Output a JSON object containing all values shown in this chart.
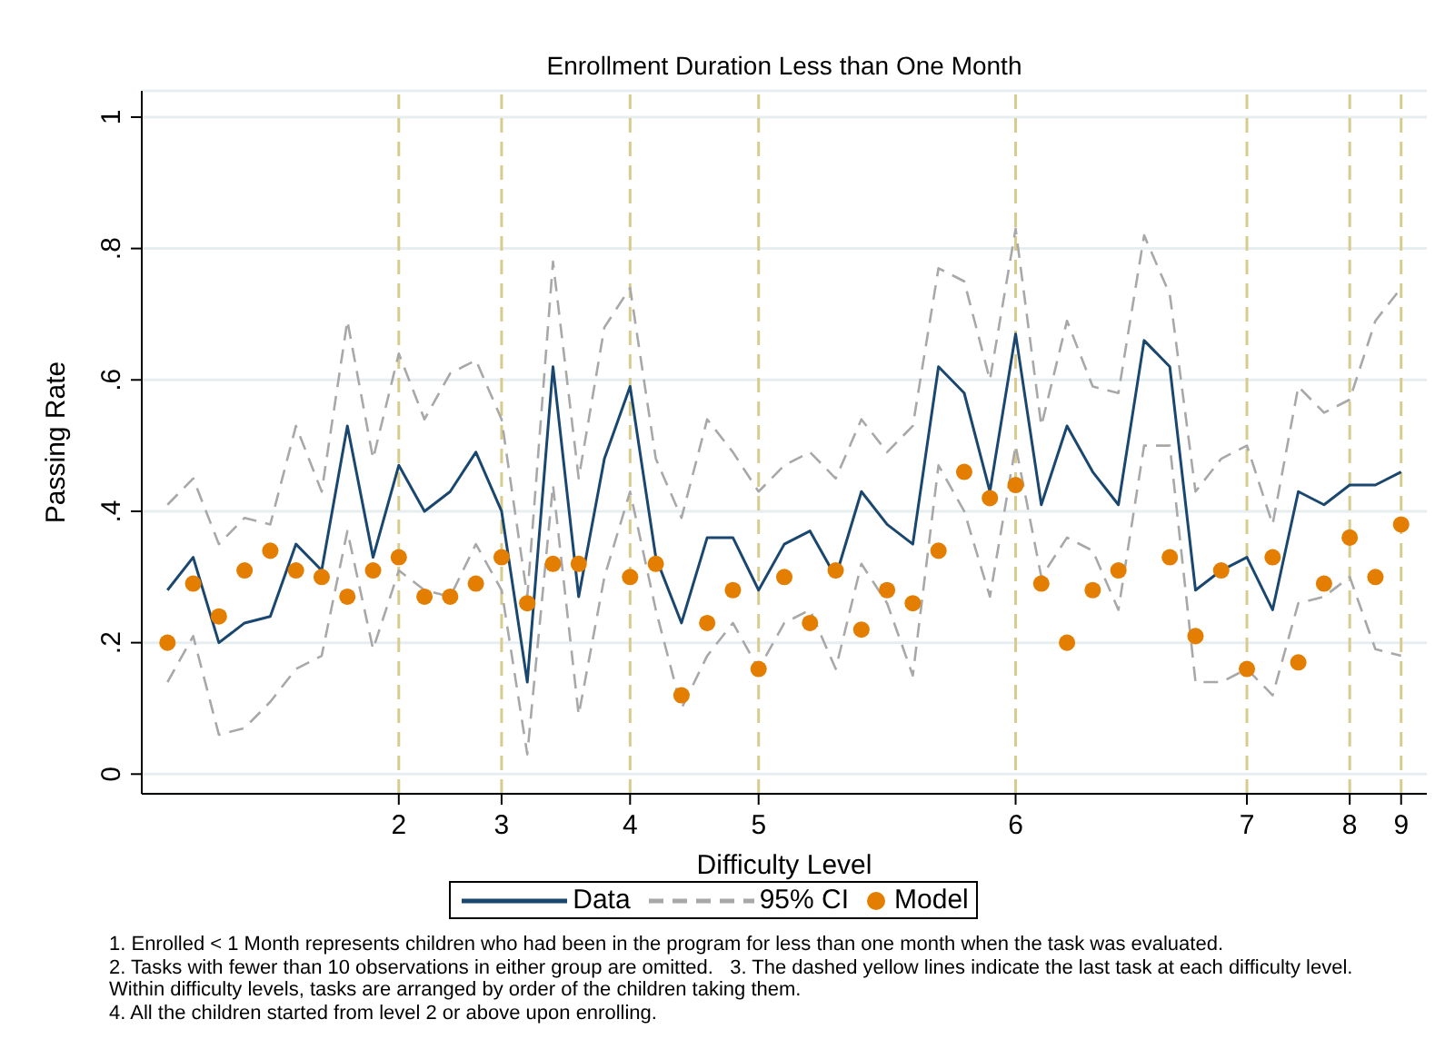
{
  "chart_data": {
    "type": "line",
    "title": "Enrollment Duration Less than One Month",
    "xlabel": "Difficulty Level",
    "ylabel": "Passing Rate",
    "categories": [
      null,
      null,
      null,
      null,
      null,
      null,
      null,
      null,
      null,
      "2",
      null,
      null,
      null,
      "3",
      null,
      null,
      null,
      null,
      "4",
      null,
      null,
      null,
      null,
      "5",
      null,
      null,
      null,
      null,
      null,
      null,
      null,
      null,
      null,
      "6",
      null,
      null,
      null,
      null,
      null,
      null,
      null,
      null,
      "7",
      null,
      null,
      null,
      "8",
      null,
      "9"
    ],
    "series": [
      {
        "name": "Data",
        "color": "#1a476f",
        "line_style": "solid",
        "marker": "none",
        "values": [
          0.28,
          0.33,
          0.2,
          0.23,
          0.24,
          0.35,
          0.31,
          0.53,
          0.33,
          0.47,
          0.4,
          0.43,
          0.49,
          0.4,
          0.14,
          0.62,
          0.27,
          0.48,
          0.59,
          0.33,
          0.23,
          0.36,
          0.36,
          0.28,
          0.35,
          0.37,
          0.3,
          0.43,
          0.38,
          0.35,
          0.62,
          0.58,
          0.43,
          0.67,
          0.41,
          0.53,
          0.46,
          0.41,
          0.66,
          0.62,
          0.28,
          0.31,
          0.33,
          0.25,
          0.43,
          0.41,
          0.44,
          0.44,
          0.46
        ]
      },
      {
        "name": "95% CI",
        "color": "#a8a8a8",
        "line_style": "dashed",
        "marker": "none",
        "values": [
          0.41,
          0.45,
          0.35,
          0.39,
          0.38,
          0.53,
          0.43,
          0.69,
          0.48,
          0.64,
          0.54,
          0.61,
          0.63,
          0.54,
          0.27,
          0.78,
          0.45,
          0.68,
          0.74,
          0.48,
          0.39,
          0.54,
          0.49,
          0.43,
          0.47,
          0.49,
          0.45,
          0.54,
          0.49,
          0.53,
          0.77,
          0.75,
          0.6,
          0.83,
          0.53,
          0.69,
          0.59,
          0.58,
          0.82,
          0.73,
          0.43,
          0.48,
          0.5,
          0.38,
          0.59,
          0.55,
          0.57,
          0.69,
          0.74
        ]
      },
      {
        "color": "#a8a8a8",
        "line_style": "dashed",
        "marker": "none",
        "values": [
          0.14,
          0.21,
          0.06,
          0.07,
          0.11,
          0.16,
          0.18,
          0.37,
          0.19,
          0.31,
          0.28,
          0.27,
          0.35,
          0.28,
          0.03,
          0.44,
          0.09,
          0.3,
          0.43,
          0.25,
          0.1,
          0.18,
          0.23,
          0.16,
          0.23,
          0.25,
          0.16,
          0.32,
          0.26,
          0.15,
          0.47,
          0.4,
          0.27,
          0.5,
          0.3,
          0.36,
          0.34,
          0.25,
          0.5,
          0.5,
          0.14,
          0.14,
          0.16,
          0.12,
          0.26,
          0.27,
          0.3,
          0.19,
          0.18
        ]
      },
      {
        "name": "Model",
        "type": "scatter",
        "color": "#e37e00",
        "marker": "circle",
        "values": [
          0.2,
          0.29,
          0.24,
          0.31,
          0.34,
          0.31,
          0.3,
          0.27,
          0.31,
          0.33,
          0.27,
          0.27,
          0.29,
          0.33,
          0.26,
          0.32,
          0.32,
          null,
          0.3,
          0.32,
          0.12,
          0.23,
          0.28,
          0.16,
          0.3,
          0.23,
          0.31,
          0.22,
          0.28,
          0.26,
          0.34,
          0.46,
          0.42,
          0.44,
          0.29,
          0.2,
          0.28,
          0.31,
          null,
          0.33,
          0.21,
          0.31,
          0.16,
          0.33,
          0.17,
          0.29,
          0.36,
          0.3,
          0.38
        ]
      }
    ],
    "ylim": [
      -0.03,
      1.04
    ],
    "yticks": [
      0,
      {
        "value": 0.2,
        "label": ".2"
      },
      {
        "value": 0.4,
        "label": ".4"
      },
      {
        "value": 0.6,
        "label": ".6"
      },
      {
        "value": 0.8,
        "label": ".8"
      },
      1
    ],
    "ref_lines": [
      {
        "axis": "x",
        "value": "2",
        "color": "#d8cb8e",
        "line_style": "dashed"
      },
      {
        "axis": "x",
        "value": "3",
        "color": "#d8cb8e",
        "line_style": "dashed"
      },
      {
        "axis": "x",
        "value": "4",
        "color": "#d8cb8e",
        "line_style": "dashed"
      },
      {
        "axis": "x",
        "value": "5",
        "color": "#d8cb8e",
        "line_style": "dashed"
      },
      {
        "axis": "x",
        "value": "6",
        "color": "#d8cb8e",
        "line_style": "dashed"
      },
      {
        "axis": "x",
        "value": "7",
        "color": "#d8cb8e",
        "line_style": "dashed"
      },
      {
        "axis": "x",
        "value": "8",
        "color": "#d8cb8e",
        "line_style": "dashed"
      },
      {
        "axis": "x",
        "value": "9",
        "color": "#d8cb8e",
        "line_style": "dashed"
      }
    ],
    "grid": "y",
    "legend": "bottom",
    "annotations": [
      "1. Enrolled < 1 Month represents children who had been in the program for less than one month when the task was evaluated.",
      "2. Tasks with fewer than 10 observations in either group are omitted.   3. The dashed yellow lines indicate the last task at each difficulty level.",
      "Within difficulty levels, tasks are arranged by order of the children taking them.",
      "4. All the children started from level 2 or above upon enrolling."
    ]
  }
}
